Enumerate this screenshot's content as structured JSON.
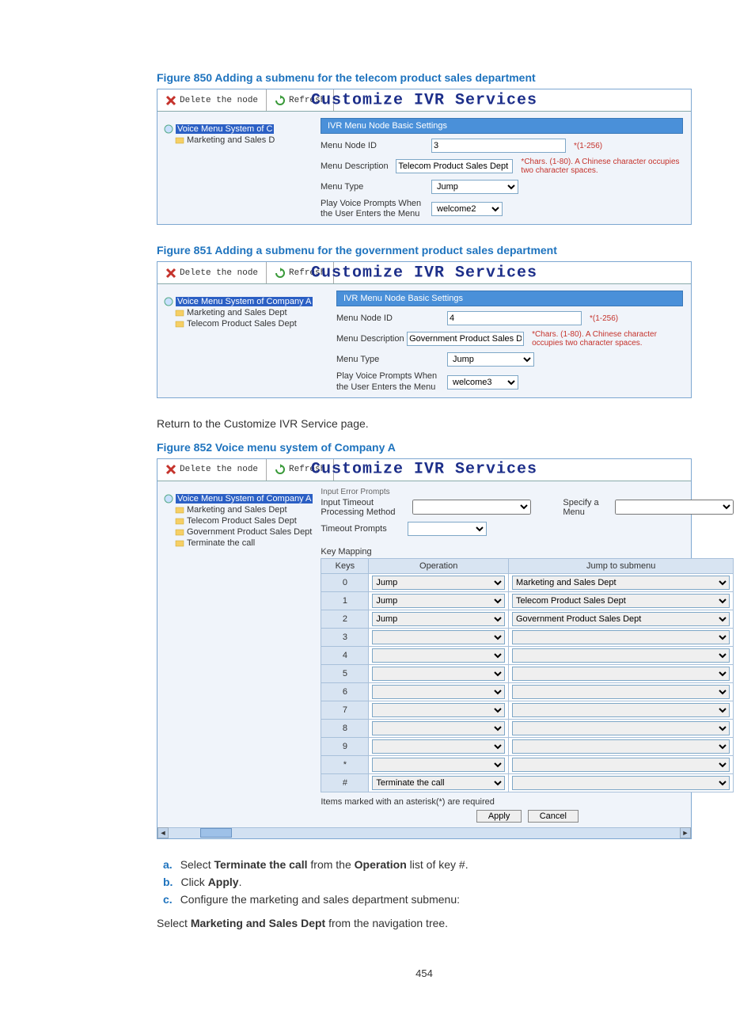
{
  "fig850": {
    "caption": "Figure 850 Adding a submenu for the telecom product sales department",
    "titlebar": {
      "delete_label": "Delete the node",
      "refresh_label": "Refresh",
      "title": "Customize IVR Services"
    },
    "tree": {
      "root": "Voice Menu System of C",
      "child1": "Marketing and Sales D"
    },
    "section_header": "IVR Menu Node Basic Settings",
    "rows": {
      "node_id_label": "Menu Node ID",
      "node_id_value": "3",
      "node_id_hint": "*(1-256)",
      "desc_label": "Menu Description",
      "desc_value": "Telecom Product Sales Dept",
      "desc_hint": "*Chars. (1-80). A Chinese character occupies two character spaces.",
      "type_label": "Menu Type",
      "type_value": "Jump",
      "prompts_label": "Play Voice Prompts When the User Enters the Menu",
      "prompts_value": "welcome2"
    }
  },
  "fig851": {
    "caption": "Figure 851 Adding a submenu for the government product sales department",
    "titlebar": {
      "delete_label": "Delete the node",
      "refresh_label": "Refresh",
      "title": "Customize IVR Services"
    },
    "tree": {
      "root": "Voice Menu System of Company A",
      "child1": "Marketing and Sales Dept",
      "child2": "Telecom Product Sales Dept"
    },
    "section_header": "IVR Menu Node Basic Settings",
    "rows": {
      "node_id_label": "Menu Node ID",
      "node_id_value": "4",
      "node_id_hint": "*(1-256)",
      "desc_label": "Menu Description",
      "desc_value": "Government Product Sales Dept",
      "desc_hint": "*Chars. (1-80). A Chinese character occupies two character spaces.",
      "type_label": "Menu Type",
      "type_value": "Jump",
      "prompts_label": "Play Voice Prompts When the User Enters the Menu",
      "prompts_value": "welcome3"
    }
  },
  "return_line": "Return to the Customize IVR Service page.",
  "fig852": {
    "caption": "Figure 852 Voice menu system of Company A",
    "titlebar": {
      "delete_label": "Delete the node",
      "refresh_label": "Refresh",
      "title": "Customize IVR Services"
    },
    "tree": {
      "root": "Voice Menu System of Company A",
      "c1": "Marketing and Sales Dept",
      "c2": "Telecom Product Sales Dept",
      "c3": "Government Product Sales Dept",
      "c4": "Terminate the call"
    },
    "upper": {
      "iec_label_above": "Input Error Prompts",
      "timeout_label": "Input Timeout Processing Method",
      "timeout_value": "",
      "specify_label": "Specify a Menu",
      "specify_value": "",
      "timeout_prompts_label": "Timeout Prompts",
      "timeout_prompts_value": ""
    },
    "keymap": {
      "label": "Key Mapping",
      "headers": {
        "keys": "Keys",
        "op": "Operation",
        "sub": "Jump to submenu"
      },
      "rows": [
        {
          "key": "0",
          "op": "Jump",
          "sub": "Marketing and Sales Dept",
          "hot": true
        },
        {
          "key": "1",
          "op": "Jump",
          "sub": "Telecom Product Sales Dept",
          "hot": true
        },
        {
          "key": "2",
          "op": "Jump",
          "sub": "Government Product Sales Dept",
          "hot": true
        },
        {
          "key": "3",
          "op": "",
          "sub": ""
        },
        {
          "key": "4",
          "op": "",
          "sub": ""
        },
        {
          "key": "5",
          "op": "",
          "sub": ""
        },
        {
          "key": "6",
          "op": "",
          "sub": ""
        },
        {
          "key": "7",
          "op": "",
          "sub": ""
        },
        {
          "key": "8",
          "op": "",
          "sub": ""
        },
        {
          "key": "9",
          "op": "",
          "sub": ""
        },
        {
          "key": "*",
          "op": "",
          "sub": ""
        },
        {
          "key": "#",
          "op": "Terminate the call",
          "sub": ""
        }
      ],
      "foot": "Items marked with an asterisk(*) are required",
      "apply": "Apply",
      "cancel": "Cancel"
    }
  },
  "steps": {
    "a": "Select Terminate the call from the Operation list of key #.",
    "b": "Click Apply.",
    "c": "Configure the marketing and sales department submenu:"
  },
  "tail_line": "Select Marketing and Sales Dept from the navigation tree.",
  "page_number": "454",
  "colors": {
    "link_blue": "#1e73be",
    "header_blue": "#4a90d9",
    "red": "#c5332c"
  }
}
